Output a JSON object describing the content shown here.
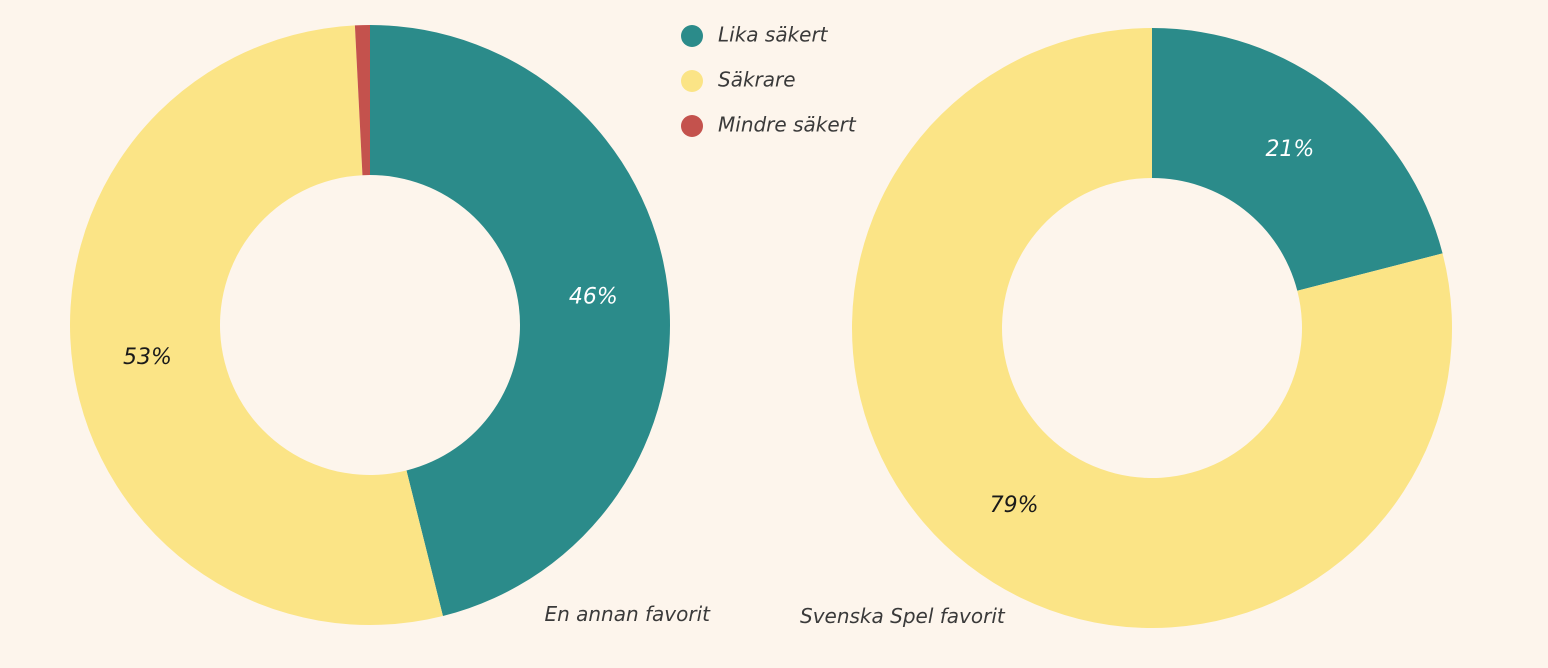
{
  "colors": {
    "background": "#fdf5ec",
    "Lika säkert": "#2b8b8a",
    "Säkrare": "#fbe486",
    "Mindre säkert": "#c4524d"
  },
  "legend": {
    "placement": "top-center",
    "items": [
      {
        "label": "Lika säkert",
        "color": "#2b8b8a"
      },
      {
        "label": "Säkrare",
        "color": "#fbe486"
      },
      {
        "label": "Mindre säkert",
        "color": "#c4524d"
      }
    ]
  },
  "chart_data": [
    {
      "type": "pie",
      "variant": "donut",
      "title": "En annan favorit",
      "slices": [
        {
          "name": "Lika säkert",
          "value": 46,
          "label": "46%",
          "label_color": "#ffffff"
        },
        {
          "name": "Säkrare",
          "value": 53,
          "label": "53%",
          "label_color": "#1a1a1a"
        },
        {
          "name": "Mindre säkert",
          "value": 0.8,
          "label": "",
          "label_color": "#1a1a1a"
        }
      ]
    },
    {
      "type": "pie",
      "variant": "donut",
      "title": "Svenska Spel favorit",
      "slices": [
        {
          "name": "Lika säkert",
          "value": 21,
          "label": "21%",
          "label_color": "#ffffff"
        },
        {
          "name": "Säkrare",
          "value": 79,
          "label": "79%",
          "label_color": "#1a1a1a"
        }
      ]
    }
  ]
}
